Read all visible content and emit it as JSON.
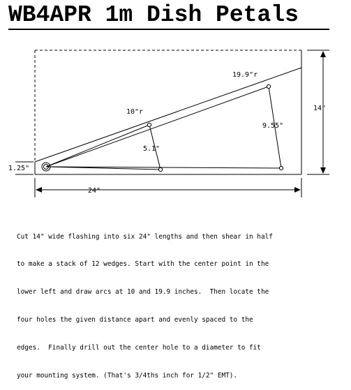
{
  "title": "WB4APR 1m Dish Petals",
  "diagram": {
    "labels": {
      "arc_outer": "19.9\"r",
      "arc_inner": "10\"r",
      "spacing_outer": "9.55\"",
      "spacing_inner": "5.1\"",
      "height": "14\"",
      "width": "24\"",
      "corner_offset": "1.25\""
    }
  },
  "description": [
    "Cut 14\" wide flashing into six 24\" lengths and then shear in half",
    "to make a stack of 12 wedges. Start with the center point in the",
    "lower left and draw arcs at 10 and 19.9 inches.  Then locate the",
    "four holes the given distance apart and evenly spaced to the",
    "edges.  Finally drill out the center hole to a diameter to fit",
    "your mounting system. (That's 3/4ths inch for 1/2\" EMT)."
  ]
}
